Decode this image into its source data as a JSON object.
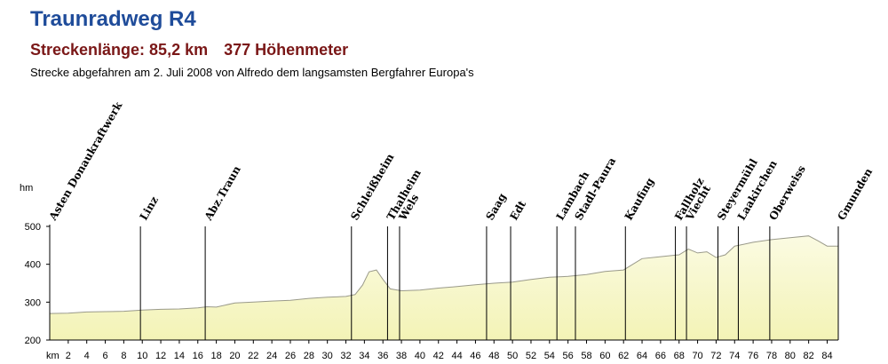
{
  "header": {
    "title": "Traunradweg R4",
    "length": "Streckenlänge: 85,2 km",
    "elevation_gain": "377 Höhenmeter",
    "note": "Strecke abgefahren am 2. Juli 2008 von Alfredo dem langsamsten Bergfahrer Europa's"
  },
  "colors": {
    "title": "#1f4c9a",
    "subtitle": "#7a1717",
    "fill": "#f3f3b6",
    "line": "#9a9a8a",
    "edge": "#40a0a0"
  },
  "chart_data": {
    "type": "area",
    "xlabel": "km",
    "ylabel": "hm",
    "xlim": [
      0,
      85.2
    ],
    "ylim": [
      200,
      500
    ],
    "x_ticks": [
      2,
      4,
      6,
      8,
      10,
      12,
      14,
      16,
      18,
      20,
      22,
      24,
      26,
      28,
      30,
      32,
      34,
      36,
      38,
      40,
      42,
      44,
      46,
      48,
      50,
      52,
      54,
      56,
      58,
      60,
      62,
      64,
      66,
      68,
      70,
      72,
      74,
      76,
      78,
      80,
      82,
      84
    ],
    "y_ticks": [
      200,
      300,
      400,
      500
    ],
    "grid": false,
    "profile": [
      [
        0,
        270
      ],
      [
        2,
        271
      ],
      [
        4,
        274
      ],
      [
        6,
        275
      ],
      [
        8,
        276
      ],
      [
        10,
        279
      ],
      [
        12,
        281
      ],
      [
        14,
        282
      ],
      [
        16,
        285
      ],
      [
        17,
        288
      ],
      [
        18,
        287
      ],
      [
        20,
        298
      ],
      [
        22,
        300
      ],
      [
        24,
        303
      ],
      [
        26,
        305
      ],
      [
        28,
        310
      ],
      [
        30,
        313
      ],
      [
        32,
        315
      ],
      [
        33,
        320
      ],
      [
        33.8,
        345
      ],
      [
        34.5,
        380
      ],
      [
        35.3,
        385
      ],
      [
        36,
        360
      ],
      [
        36.8,
        335
      ],
      [
        38,
        330
      ],
      [
        40,
        332
      ],
      [
        42,
        337
      ],
      [
        44,
        341
      ],
      [
        46,
        346
      ],
      [
        48,
        350
      ],
      [
        50,
        353
      ],
      [
        52,
        360
      ],
      [
        54,
        366
      ],
      [
        56,
        368
      ],
      [
        58,
        373
      ],
      [
        60,
        381
      ],
      [
        62,
        385
      ],
      [
        63,
        400
      ],
      [
        64,
        415
      ],
      [
        66,
        420
      ],
      [
        68,
        425
      ],
      [
        69,
        440
      ],
      [
        70,
        430
      ],
      [
        71,
        433
      ],
      [
        72,
        418
      ],
      [
        73,
        425
      ],
      [
        74,
        448
      ],
      [
        75,
        453
      ],
      [
        76,
        458
      ],
      [
        78,
        465
      ],
      [
        80,
        470
      ],
      [
        82,
        475
      ],
      [
        83,
        462
      ],
      [
        84,
        448
      ],
      [
        85.2,
        448
      ]
    ],
    "places": [
      {
        "km": 0,
        "name": "Asten Donaukraftwerk"
      },
      {
        "km": 9.8,
        "name": "Linz"
      },
      {
        "km": 16.8,
        "name": "Abz.Traun"
      },
      {
        "km": 32.6,
        "name": "Schleißheim"
      },
      {
        "km": 36.5,
        "name": "Thalheim"
      },
      {
        "km": 37.8,
        "name": "Wels"
      },
      {
        "km": 47.2,
        "name": "Saag"
      },
      {
        "km": 49.8,
        "name": "Edt"
      },
      {
        "km": 54.8,
        "name": "Lambach"
      },
      {
        "km": 56.8,
        "name": "Stadl-Paura"
      },
      {
        "km": 62.2,
        "name": "Kaufing"
      },
      {
        "km": 67.6,
        "name": "Fallholz"
      },
      {
        "km": 68.8,
        "name": "Viecht"
      },
      {
        "km": 72.2,
        "name": "Steyermühl"
      },
      {
        "km": 74.4,
        "name": "Laakirchen"
      },
      {
        "km": 77.8,
        "name": "Oberweiss"
      },
      {
        "km": 85.2,
        "name": "Gmunden"
      }
    ]
  }
}
